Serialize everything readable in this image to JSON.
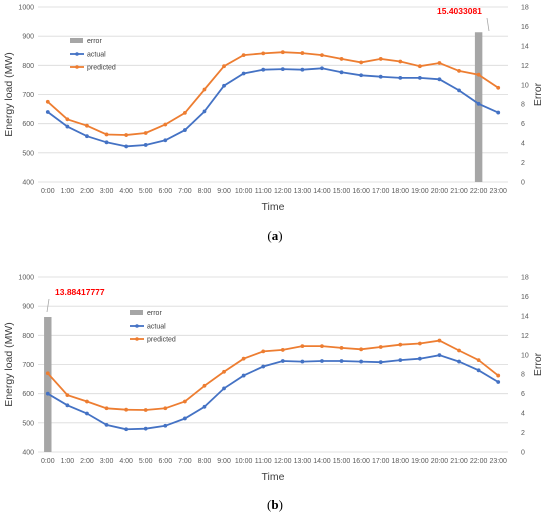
{
  "chart_data": [
    {
      "type": "line",
      "caption_prefix": "(",
      "caption_letter": "a",
      "caption_suffix": ")",
      "xlabel": "Time",
      "ylabel": "Energy load  (MW)",
      "y2label": "Error",
      "ylim": [
        400,
        1000
      ],
      "y2lim": [
        0,
        18
      ],
      "yticks": [
        400,
        500,
        600,
        700,
        800,
        900,
        1000
      ],
      "y2ticks": [
        0,
        2,
        4,
        6,
        8,
        10,
        12,
        14,
        16,
        18
      ],
      "grid": true,
      "legend_position": "top-left",
      "categories": [
        "0:00",
        "1:00",
        "2:00",
        "3:00",
        "4:00",
        "5:00",
        "6:00",
        "7:00",
        "8:00",
        "9:00",
        "10:00",
        "11:00",
        "12:00",
        "13:00",
        "14:00",
        "15:00",
        "16:00",
        "17:00",
        "18:00",
        "19:00",
        "20:00",
        "21:00",
        "22:00",
        "23:00"
      ],
      "series": [
        {
          "name": "actual",
          "color": "#4472c4",
          "values": [
            640,
            590,
            557,
            536,
            522,
            527,
            543,
            578,
            642,
            730,
            772,
            785,
            787,
            785,
            790,
            776,
            766,
            761,
            757,
            757,
            752,
            714,
            668,
            638
          ]
        },
        {
          "name": "predicted",
          "color": "#ed7d31",
          "values": [
            675,
            615,
            593,
            563,
            561,
            568,
            597,
            637,
            717,
            797,
            835,
            841,
            845,
            842,
            835,
            822,
            810,
            822,
            813,
            797,
            808,
            781,
            768,
            723
          ]
        }
      ],
      "error_series": {
        "name": "error",
        "color": "#a6a6a6",
        "category_index": 22,
        "value": 15.4033081
      },
      "annotation": "15.4033081"
    },
    {
      "type": "line",
      "caption_prefix": "(",
      "caption_letter": "b",
      "caption_suffix": ")",
      "xlabel": "Time",
      "ylabel": "Energy load  (MW)",
      "y2label": "Error",
      "ylim": [
        400,
        1000
      ],
      "y2lim": [
        0,
        18
      ],
      "yticks": [
        400,
        500,
        600,
        700,
        800,
        900,
        1000
      ],
      "y2ticks": [
        0,
        2,
        4,
        6,
        8,
        10,
        12,
        14,
        16,
        18
      ],
      "grid": true,
      "legend_position": "top-left",
      "categories": [
        "0:00",
        "1:00",
        "2:00",
        "3:00",
        "4:00",
        "5:00",
        "6:00",
        "7:00",
        "8:00",
        "9:00",
        "10:00",
        "11:00",
        "12:00",
        "13:00",
        "14:00",
        "15:00",
        "16:00",
        "17:00",
        "18:00",
        "19:00",
        "20:00",
        "21:00",
        "22:00",
        "23:00"
      ],
      "series": [
        {
          "name": "actual",
          "color": "#4472c4",
          "values": [
            600,
            560,
            532,
            493,
            478,
            480,
            490,
            515,
            555,
            618,
            662,
            693,
            712,
            710,
            712,
            712,
            710,
            708,
            715,
            720,
            732,
            710,
            680,
            640
          ]
        },
        {
          "name": "predicted",
          "color": "#ed7d31",
          "values": [
            670,
            595,
            573,
            550,
            545,
            544,
            550,
            573,
            627,
            675,
            720,
            745,
            750,
            763,
            763,
            757,
            752,
            760,
            768,
            772,
            782,
            748,
            715,
            662
          ]
        }
      ],
      "error_series": {
        "name": "error",
        "color": "#a6a6a6",
        "category_index": 0,
        "value": 13.88417777
      },
      "annotation": "13.88417777"
    }
  ]
}
